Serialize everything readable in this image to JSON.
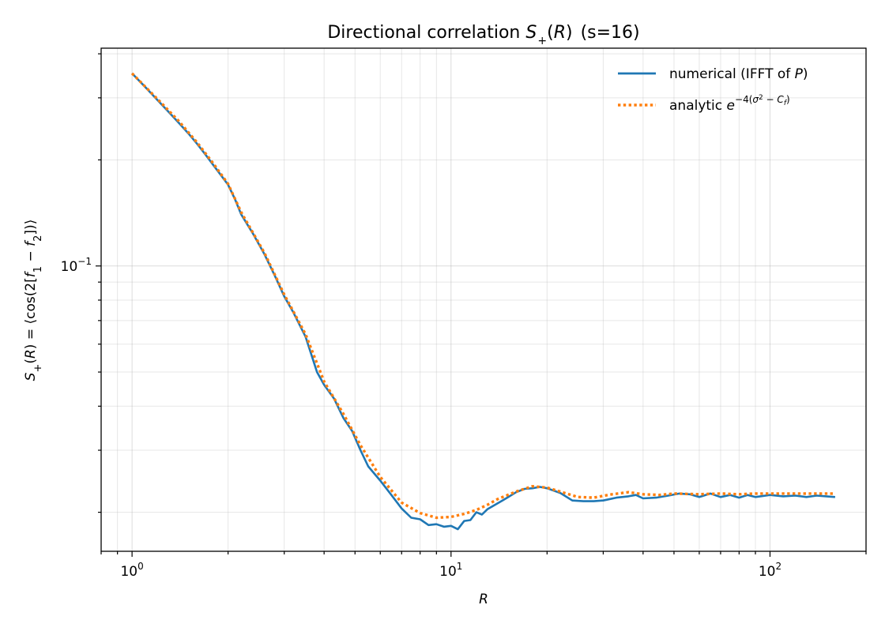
{
  "chart_data": {
    "type": "line",
    "title_text": "Directional correlation",
    "title_math": "S+(R)",
    "title_suffix": "(s=16)",
    "xlabel": "R",
    "ylabel": "S+(R) = ⟨cos(2[f1 − f2])⟩",
    "xscale": "log",
    "yscale": "log",
    "xlim": [
      0.8,
      200
    ],
    "ylim": [
      0.0155,
      0.415
    ],
    "grid": true,
    "legend_position": "top-right",
    "x_ticks": [
      {
        "value": 1,
        "label_base": "10",
        "label_exp": "0"
      },
      {
        "value": 10,
        "label_base": "10",
        "label_exp": "1"
      },
      {
        "value": 100,
        "label_base": "10",
        "label_exp": "2"
      }
    ],
    "y_ticks": [
      {
        "value": 0.1,
        "label_base": "10",
        "label_exp": "−1"
      }
    ],
    "series": [
      {
        "name": "numerical (IFFT of P)",
        "color": "#1f77b4",
        "style": "solid",
        "x": [
          1.0,
          1.1,
          1.2,
          1.3,
          1.4,
          1.5,
          1.6,
          1.7,
          1.8,
          1.9,
          2.0,
          2.1,
          2.2,
          2.4,
          2.6,
          2.8,
          3.0,
          3.2,
          3.5,
          3.8,
          4.0,
          4.3,
          4.6,
          4.9,
          5.2,
          5.5,
          6.0,
          6.5,
          7.0,
          7.5,
          8.0,
          8.5,
          9.0,
          9.5,
          10.0,
          10.5,
          11.0,
          11.5,
          12.0,
          12.5,
          13.0,
          14.0,
          15.0,
          16.0,
          17.0,
          18.0,
          19.0,
          20.0,
          22.0,
          24.0,
          26.0,
          28.0,
          30.0,
          33.0,
          36.0,
          38.0,
          40.0,
          44.0,
          48.0,
          52.0,
          56.0,
          60.0,
          65.0,
          70.0,
          75.0,
          80.0,
          85.0,
          90.0,
          100.0,
          110.0,
          120.0,
          130.0,
          140.0,
          150.0,
          160.0
        ],
        "y": [
          0.352,
          0.322,
          0.296,
          0.274,
          0.255,
          0.238,
          0.222,
          0.207,
          0.193,
          0.181,
          0.17,
          0.155,
          0.14,
          0.123,
          0.108,
          0.094,
          0.082,
          0.074,
          0.063,
          0.05,
          0.046,
          0.042,
          0.037,
          0.034,
          0.03,
          0.027,
          0.0246,
          0.0224,
          0.0205,
          0.0193,
          0.0191,
          0.0184,
          0.0185,
          0.0182,
          0.0183,
          0.0179,
          0.0189,
          0.019,
          0.02,
          0.0197,
          0.0204,
          0.0212,
          0.022,
          0.0228,
          0.0233,
          0.0234,
          0.0236,
          0.0234,
          0.0227,
          0.0216,
          0.0215,
          0.0215,
          0.0216,
          0.022,
          0.0222,
          0.0224,
          0.0219,
          0.022,
          0.0223,
          0.0226,
          0.0225,
          0.0221,
          0.0226,
          0.0221,
          0.0224,
          0.022,
          0.0224,
          0.0221,
          0.0224,
          0.0222,
          0.0223,
          0.0221,
          0.0223,
          0.0222,
          0.0221
        ]
      },
      {
        "name": "analytic",
        "name_math": "e^{−4(σ² − C_f)}",
        "color": "#ff7f0e",
        "style": "dotted",
        "x": [
          1.0,
          1.2,
          1.4,
          1.6,
          1.8,
          2.0,
          2.2,
          2.6,
          3.0,
          3.5,
          4.0,
          4.6,
          5.2,
          6.0,
          7.0,
          8.0,
          9.0,
          10.0,
          11.0,
          12.0,
          13.0,
          14.0,
          16.0,
          18.0,
          20.0,
          22.0,
          25.0,
          28.0,
          32.0,
          36.0,
          40.0,
          45.0,
          50.0,
          60.0,
          70.0,
          80.0,
          90.0,
          100.0,
          120.0,
          140.0,
          160.0
        ],
        "y": [
          0.352,
          0.298,
          0.258,
          0.224,
          0.195,
          0.171,
          0.142,
          0.109,
          0.083,
          0.064,
          0.047,
          0.038,
          0.031,
          0.0252,
          0.0213,
          0.0199,
          0.0193,
          0.0194,
          0.0198,
          0.0203,
          0.021,
          0.0218,
          0.0229,
          0.0237,
          0.0235,
          0.0229,
          0.0221,
          0.022,
          0.0225,
          0.0228,
          0.0225,
          0.0224,
          0.0226,
          0.0225,
          0.0226,
          0.0225,
          0.0226,
          0.0226,
          0.0226,
          0.0226,
          0.0226
        ]
      }
    ]
  }
}
